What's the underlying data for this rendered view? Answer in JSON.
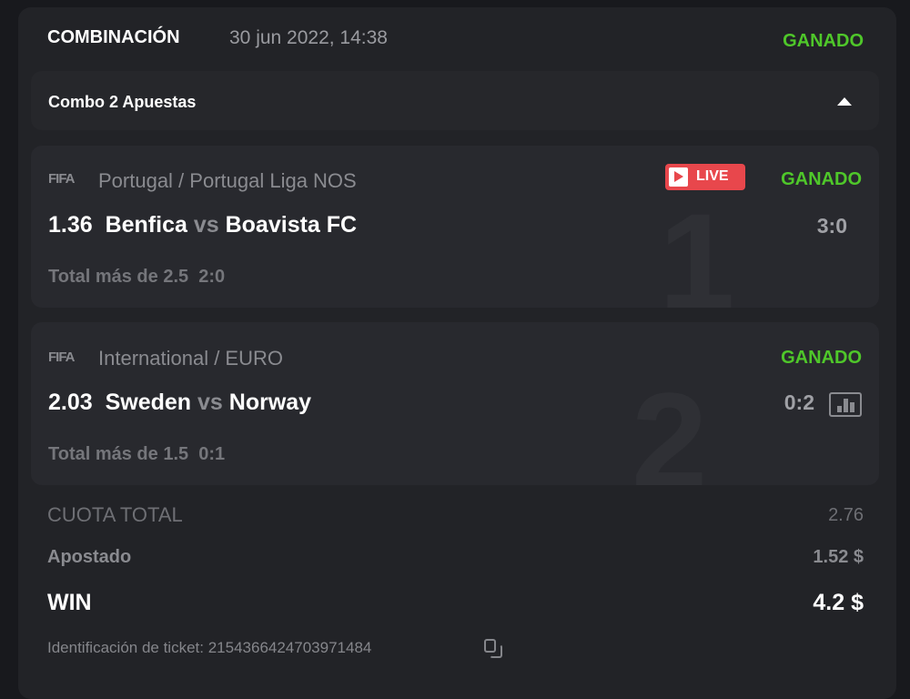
{
  "header": {
    "type": "COMBINACIÓN",
    "date": "30 jun 2022, 14:38",
    "status": "GANADO"
  },
  "combo": {
    "label": "Combo 2 Apuestas",
    "toggle_icon": "triangle-up-icon"
  },
  "legs": [
    {
      "index": "1",
      "brand": "FIFA",
      "league": "Portugal / Portugal Liga NOS",
      "live": "LIVE",
      "status": "GANADO",
      "odds": "1.36",
      "home": "Benfica",
      "vs": "vs",
      "away": "Boavista FC",
      "score": "3:0",
      "market": "Total más de 2.5",
      "market_score": "2:0"
    },
    {
      "index": "2",
      "brand": "FIFA",
      "league": "International / EURO",
      "status": "GANADO",
      "odds": "2.03",
      "home": "Sweden",
      "vs": "vs",
      "away": "Norway",
      "score": "0:2",
      "market": "Total más de 1.5",
      "market_score": "0:1"
    }
  ],
  "summary": {
    "total_odds_label": "CUOTA TOTAL",
    "total_odds": "2.76",
    "staked_label": "Apostado",
    "staked": "1.52 $",
    "win_label": "WIN",
    "win": "4.2 $",
    "ticket_label": "Identificación de ticket:",
    "ticket_id": "215436642470397 1484"
  },
  "colors": {
    "win": "#4fc72a",
    "live": "#e8474c"
  }
}
